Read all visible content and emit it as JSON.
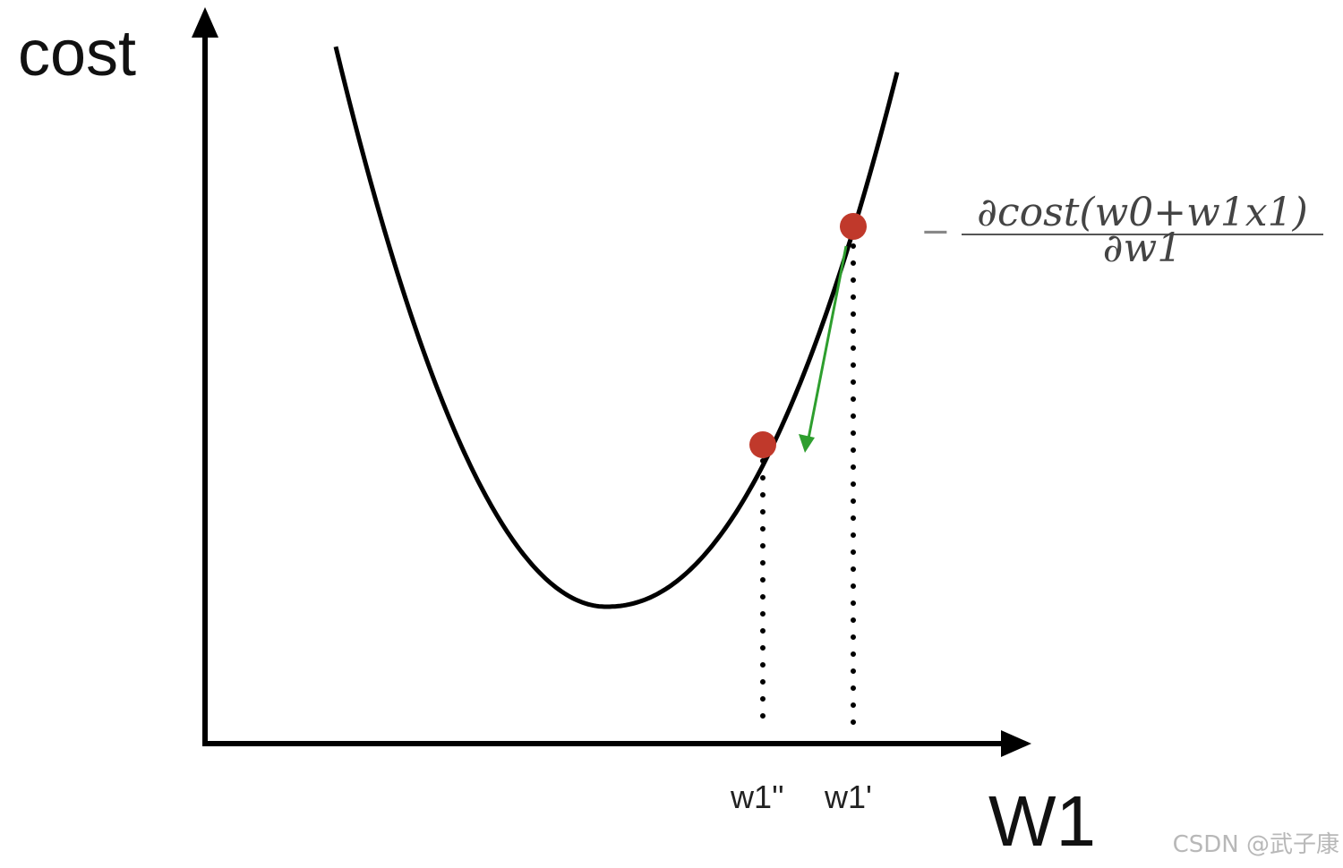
{
  "axes": {
    "y_label": "cost",
    "x_label": "W1"
  },
  "points": {
    "w1_prime_label": "w1'",
    "w1_double_prime_label": "w1''"
  },
  "formula": {
    "sign": "−",
    "numerator": "∂cost(w0+w1x1)",
    "denominator": "∂w1"
  },
  "watermark": "CSDN @武子康",
  "colors": {
    "curve": "#000000",
    "point": "#c0392b",
    "gradient_arrow": "#2e9e2e",
    "guide": "#000000"
  }
}
